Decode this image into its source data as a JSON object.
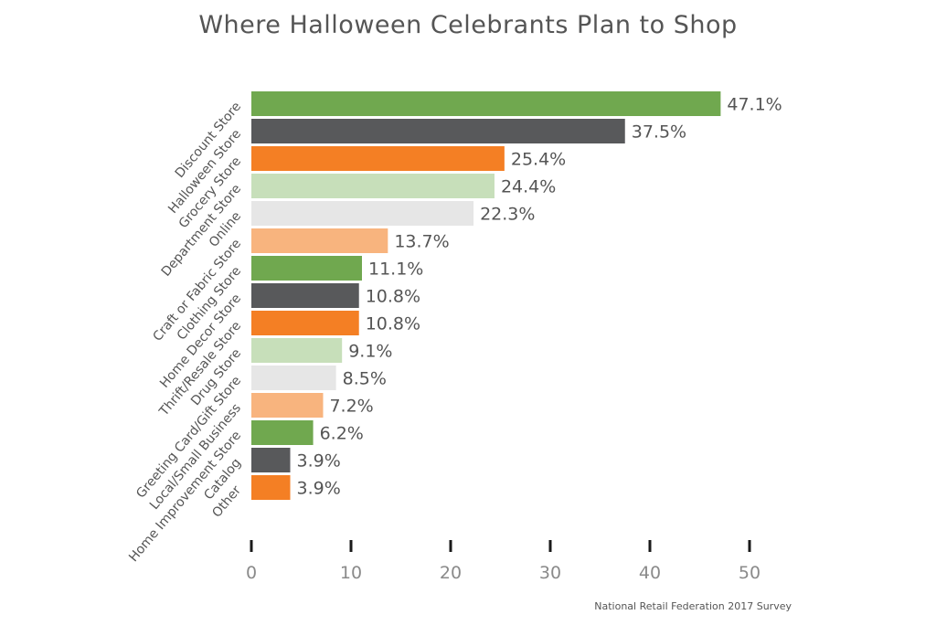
{
  "chart_data": {
    "type": "bar",
    "orientation": "horizontal",
    "title": "Where Halloween Celebrants Plan to Shop",
    "source": "National Retail Federation 2017 Survey",
    "xlabel": "",
    "ylabel": "",
    "xlim": [
      0,
      50
    ],
    "ticks": [
      0,
      10,
      20,
      30,
      40,
      50
    ],
    "tick_labels": [
      "0",
      "10",
      "20",
      "30",
      "40",
      "50"
    ],
    "grid": false,
    "legend": "none",
    "categories": [
      "Discount Store",
      "Halloween Store",
      "Grocery Store",
      "Department Store",
      "Online",
      "Craft or Fabric Store",
      "Clothing Store",
      "Home Decor Store",
      "Thrift/Resale Store",
      "Drug Store",
      "Greeting Card/Gift Store",
      "Local/Small Business",
      "Home Improvement Store",
      "Catalog",
      "Other"
    ],
    "values": [
      47.1,
      37.5,
      25.4,
      24.4,
      22.3,
      13.7,
      11.1,
      10.8,
      10.8,
      9.1,
      8.5,
      7.2,
      6.2,
      3.9,
      3.9
    ],
    "value_labels": [
      "47.1%",
      "37.5%",
      "25.4%",
      "24.4%",
      "22.3%",
      "13.7%",
      "11.1%",
      "10.8%",
      "10.8%",
      "9.1%",
      "8.5%",
      "7.2%",
      "6.2%",
      "3.9%",
      "3.9%"
    ],
    "bar_colors": [
      "#70a84f",
      "#58595b",
      "#f47f24",
      "#c7dfba",
      "#e6e6e6",
      "#f8b47e",
      "#70a84f",
      "#58595b",
      "#f47f24",
      "#c7dfba",
      "#e6e6e6",
      "#f8b47e",
      "#70a84f",
      "#58595b",
      "#f47f24"
    ]
  }
}
